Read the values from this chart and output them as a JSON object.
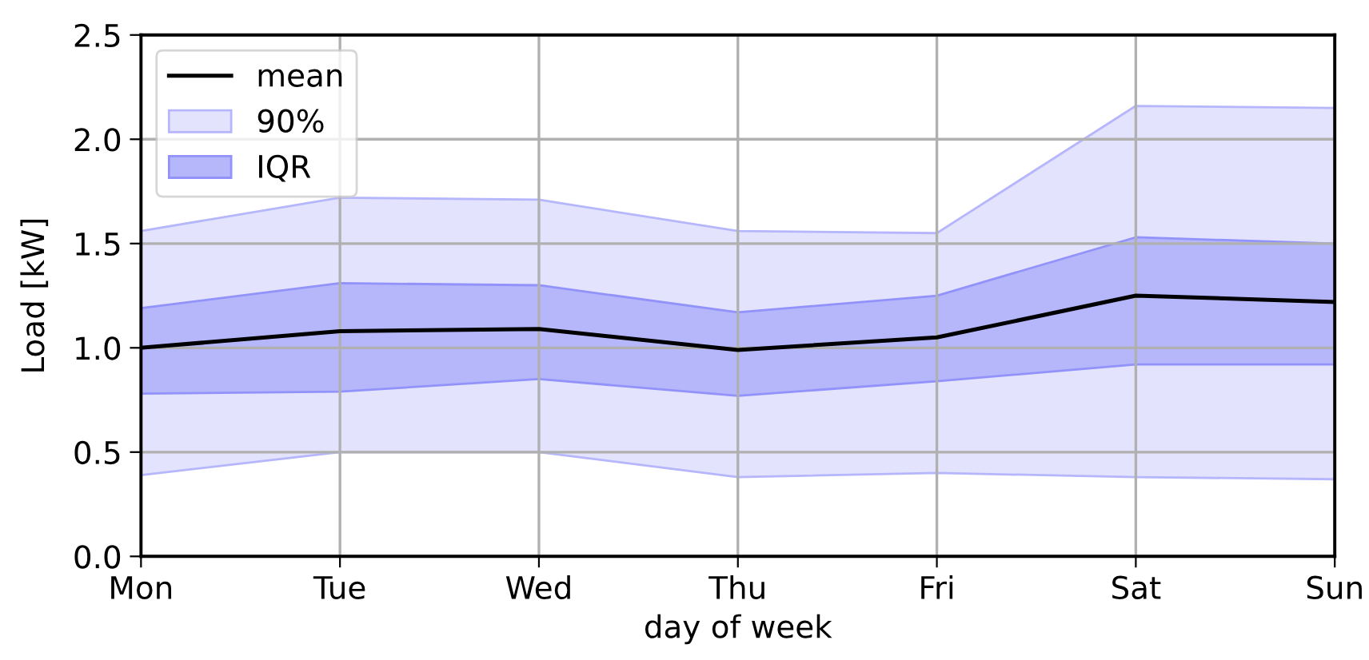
{
  "chart_data": {
    "type": "line",
    "categories": [
      "Mon",
      "Tue",
      "Wed",
      "Thu",
      "Fri",
      "Sat",
      "Sun"
    ],
    "xlabel": "day of week",
    "ylabel": "Load [kW]",
    "series": [
      {
        "name": "mean",
        "color": "#000000",
        "values": [
          1.0,
          1.08,
          1.09,
          0.99,
          1.05,
          1.25,
          1.22
        ]
      },
      {
        "name": "90%",
        "type": "area",
        "color": "#e3e3fd",
        "values": [
          null,
          null,
          null,
          null,
          null,
          null,
          null
        ],
        "lower": [
          0.39,
          0.5,
          0.5,
          0.38,
          0.4,
          0.38,
          0.37
        ],
        "upper": [
          1.56,
          1.72,
          1.71,
          1.56,
          1.55,
          2.16,
          2.15
        ]
      },
      {
        "name": "IQR",
        "type": "area",
        "color": "#b6b6fb",
        "values": [
          null,
          null,
          null,
          null,
          null,
          null,
          null
        ],
        "lower": [
          0.78,
          0.79,
          0.85,
          0.77,
          0.84,
          0.92,
          0.92
        ],
        "upper": [
          1.19,
          1.31,
          1.3,
          1.17,
          1.25,
          1.53,
          1.5
        ]
      }
    ],
    "ylim": [
      0.0,
      2.5
    ],
    "yticks": [
      {
        "value": 0.0,
        "label": "0.0"
      },
      0.5,
      {
        "value": 1.0,
        "label": "1.0"
      },
      1.5,
      {
        "value": 2.0,
        "label": "2.0"
      },
      2.5
    ],
    "grid": true,
    "legend": "top left",
    "line_style": "solid"
  }
}
